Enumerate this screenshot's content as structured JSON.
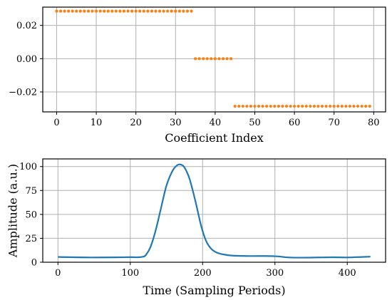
{
  "chart_data": [
    {
      "type": "scatter",
      "xlabel": "Coefficient Index",
      "ylabel": "",
      "xlim": [
        -3.5,
        83
      ],
      "ylim": [
        -0.032,
        0.031
      ],
      "xticks": [
        0,
        10,
        20,
        30,
        40,
        50,
        60,
        70,
        80
      ],
      "xtick_labels": [
        "0",
        "10",
        "20",
        "30",
        "40",
        "50",
        "60",
        "70",
        "80"
      ],
      "yticks": [
        0.02,
        0.0,
        -0.02
      ],
      "ytick_labels": [
        "0.02",
        "0.00",
        "−0.02"
      ],
      "grid": true,
      "series": [
        {
          "color": "#ff7f0e",
          "segments": [
            {
              "x_start": 0,
              "x_end": 34,
              "y": 0.0286
            },
            {
              "x_start": 35,
              "x_end": 44,
              "y": 0.0
            },
            {
              "x_start": 45,
              "x_end": 79,
              "y": -0.0286
            }
          ]
        }
      ]
    },
    {
      "type": "line",
      "xlabel": "Time (Sampling Periods)",
      "ylabel": "Amplitude (a.u.)",
      "xlim": [
        -21,
        453
      ],
      "ylim": [
        0,
        108
      ],
      "xticks": [
        0,
        100,
        200,
        300,
        400
      ],
      "xtick_labels": [
        "0",
        "100",
        "200",
        "300",
        "400"
      ],
      "yticks": [
        0,
        25,
        50,
        75,
        100
      ],
      "ytick_labels": [
        "0",
        "25",
        "50",
        "75",
        "100"
      ],
      "grid": true,
      "series": [
        {
          "color": "#1f77b4",
          "x": [
            0,
            20,
            40,
            60,
            80,
            100,
            110,
            118,
            122,
            128,
            135,
            142,
            150,
            158,
            165,
            170,
            175,
            182,
            190,
            198,
            205,
            212,
            220,
            230,
            240,
            260,
            280,
            300,
            320,
            340,
            360,
            380,
            400,
            420,
            432
          ],
          "y": [
            5.5,
            5.2,
            5.0,
            5.0,
            5.1,
            5.3,
            5.2,
            5.8,
            8,
            16,
            33,
            55,
            80,
            95,
            101.5,
            102,
            99,
            87,
            64,
            38,
            22,
            14,
            10,
            8,
            7,
            6.5,
            6.5,
            6.3,
            5,
            4.8,
            5,
            5.2,
            5,
            5.5,
            5.8
          ]
        }
      ]
    }
  ]
}
